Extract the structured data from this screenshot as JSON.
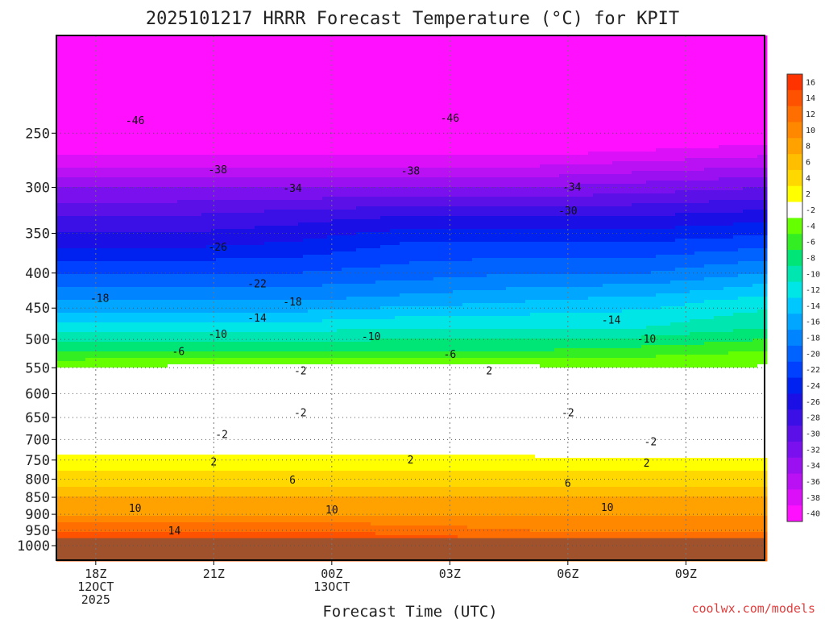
{
  "chart_data": {
    "type": "heatmap",
    "title": "2025101217 HRRR Forecast Temperature (°C) for KPIT",
    "xlabel": "Forecast Time (UTC)",
    "ylabel": "",
    "credit": "coolwx.com/models",
    "x_ticks": [
      {
        "hour": 0,
        "lines": [
          "18Z",
          "12OCT",
          "2025"
        ]
      },
      {
        "hour": 3,
        "lines": [
          "21Z"
        ]
      },
      {
        "hour": 6,
        "lines": [
          "00Z",
          "13OCT"
        ]
      },
      {
        "hour": 9,
        "lines": [
          "03Z"
        ]
      },
      {
        "hour": 12,
        "lines": [
          "06Z"
        ]
      },
      {
        "hour": 15,
        "lines": [
          "09Z"
        ]
      }
    ],
    "xlim": [
      -1,
      17
    ],
    "y_ticks": [
      250,
      300,
      350,
      400,
      450,
      500,
      550,
      600,
      650,
      700,
      750,
      800,
      850,
      900,
      950,
      1000
    ],
    "ylim_hPa": [
      1050,
      180
    ],
    "y_scale": "log",
    "ground_fill": "#a0522d",
    "colorbar": {
      "labels": [
        "16",
        "14",
        "12",
        "10",
        "8",
        "6",
        "4",
        "2",
        "-2",
        "-4",
        "-6",
        "-8",
        "-10",
        "-12",
        "-14",
        "-16",
        "-18",
        "-20",
        "-22",
        "-24",
        "-26",
        "-28",
        "-30",
        "-32",
        "-34",
        "-36",
        "-38",
        "-40"
      ],
      "colors": [
        "#ff3300",
        "#ff5200",
        "#ff6e00",
        "#ff8800",
        "#ffa200",
        "#ffbe00",
        "#ffd800",
        "#ffff00",
        "#ffffff",
        "#66ff00",
        "#33ee22",
        "#00e676",
        "#00e6b0",
        "#00e6e6",
        "#00c8ff",
        "#00a6ff",
        "#0084ff",
        "#0062ff",
        "#0040ff",
        "#0022f0",
        "#1a10e6",
        "#3a10e6",
        "#5a10e6",
        "#7a10ee",
        "#9a10f0",
        "#ba10f4",
        "#dc10f8",
        "#ff10ff"
      ]
    },
    "temperature_levels_C": [
      {
        "hPa": 200,
        "temps": [
          -50,
          -50,
          -50,
          -50,
          -50,
          -50,
          -50
        ]
      },
      {
        "hPa": 240,
        "temps": [
          -46,
          -46,
          -46,
          -46,
          -46,
          -45,
          -44
        ]
      },
      {
        "hPa": 270,
        "temps": [
          -40,
          -40,
          -40,
          -40,
          -40,
          -39,
          -38
        ]
      },
      {
        "hPa": 300,
        "temps": [
          -34,
          -34,
          -34,
          -34,
          -34,
          -33,
          -32
        ]
      },
      {
        "hPa": 330,
        "temps": [
          -30,
          -30,
          -29,
          -28,
          -28,
          -28,
          -27
        ]
      },
      {
        "hPa": 360,
        "temps": [
          -27,
          -27,
          -26,
          -24,
          -24,
          -24,
          -23
        ]
      },
      {
        "hPa": 400,
        "temps": [
          -22,
          -22,
          -22,
          -21,
          -20,
          -20,
          -18
        ]
      },
      {
        "hPa": 440,
        "temps": [
          -18,
          -18,
          -18,
          -17,
          -16,
          -15,
          -13
        ]
      },
      {
        "hPa": 480,
        "temps": [
          -13,
          -13,
          -13,
          -12,
          -12,
          -12,
          -10
        ]
      },
      {
        "hPa": 520,
        "temps": [
          -8,
          -8,
          -8,
          -8,
          -8,
          -7,
          -6
        ]
      },
      {
        "hPa": 560,
        "temps": [
          -3,
          -2,
          -2,
          -2,
          -2,
          -3,
          -3
        ]
      },
      {
        "hPa": 600,
        "temps": [
          1,
          0,
          -1,
          -1,
          -1,
          -2,
          -3
        ]
      },
      {
        "hPa": 640,
        "temps": [
          -2,
          -3,
          -3,
          -1,
          -1,
          -3,
          -3
        ]
      },
      {
        "hPa": 680,
        "temps": [
          -1,
          -2,
          -2,
          0,
          0,
          -2,
          -2
        ]
      },
      {
        "hPa": 720,
        "temps": [
          1,
          1,
          1,
          1,
          1,
          0,
          0
        ]
      },
      {
        "hPa": 760,
        "temps": [
          3,
          3,
          3,
          3,
          3,
          3,
          3
        ]
      },
      {
        "hPa": 800,
        "temps": [
          5,
          5,
          5,
          5,
          5,
          5,
          5
        ]
      },
      {
        "hPa": 850,
        "temps": [
          8,
          8,
          8,
          8,
          8,
          8,
          8
        ]
      },
      {
        "hPa": 900,
        "temps": [
          10,
          10,
          10,
          10,
          10,
          10,
          10
        ]
      },
      {
        "hPa": 950,
        "temps": [
          14,
          14,
          14,
          13,
          12,
          12,
          12
        ]
      },
      {
        "hPa": 980,
        "temps": [
          16,
          16,
          16,
          15,
          14,
          14,
          14
        ]
      }
    ],
    "contour_labels": [
      {
        "text": "-46",
        "hour": 1.0,
        "hPa": 240
      },
      {
        "text": "-46",
        "hour": 9.0,
        "hPa": 238
      },
      {
        "text": "-38",
        "hour": 3.1,
        "hPa": 283
      },
      {
        "text": "-38",
        "hour": 8.0,
        "hPa": 284
      },
      {
        "text": "-34",
        "hour": 5.0,
        "hPa": 301
      },
      {
        "text": "-34",
        "hour": 12.1,
        "hPa": 300
      },
      {
        "text": "-30",
        "hour": 12.0,
        "hPa": 325
      },
      {
        "text": "-26",
        "hour": 3.1,
        "hPa": 367
      },
      {
        "text": "-22",
        "hour": 4.1,
        "hPa": 415
      },
      {
        "text": "-18",
        "hour": 0.1,
        "hPa": 436
      },
      {
        "text": "-18",
        "hour": 5.0,
        "hPa": 441
      },
      {
        "text": "-14",
        "hour": 4.1,
        "hPa": 466
      },
      {
        "text": "-14",
        "hour": 13.1,
        "hPa": 469
      },
      {
        "text": "-10",
        "hour": 3.1,
        "hPa": 492
      },
      {
        "text": "-10",
        "hour": 7.0,
        "hPa": 496
      },
      {
        "text": "-10",
        "hour": 14.0,
        "hPa": 500
      },
      {
        "text": "-6",
        "hour": 2.1,
        "hPa": 521
      },
      {
        "text": "-6",
        "hour": 9.0,
        "hPa": 526
      },
      {
        "text": "-2",
        "hour": 5.2,
        "hPa": 556
      },
      {
        "text": "2",
        "hour": 10.0,
        "hPa": 556
      },
      {
        "text": "-2",
        "hour": 5.2,
        "hPa": 640
      },
      {
        "text": "-2",
        "hour": 3.2,
        "hPa": 689
      },
      {
        "text": "-2",
        "hour": 12.0,
        "hPa": 640
      },
      {
        "text": "-2",
        "hour": 14.1,
        "hPa": 706
      },
      {
        "text": "2",
        "hour": 3.0,
        "hPa": 756
      },
      {
        "text": "2",
        "hour": 8.0,
        "hPa": 750
      },
      {
        "text": "2",
        "hour": 14.0,
        "hPa": 759
      },
      {
        "text": "6",
        "hour": 5.0,
        "hPa": 803
      },
      {
        "text": "6",
        "hour": 12.0,
        "hPa": 812
      },
      {
        "text": "10",
        "hour": 1.0,
        "hPa": 883
      },
      {
        "text": "10",
        "hour": 6.0,
        "hPa": 888
      },
      {
        "text": "10",
        "hour": 13.0,
        "hPa": 881
      },
      {
        "text": "14",
        "hour": 2.0,
        "hPa": 952
      }
    ],
    "grid": true,
    "legend": "colorbar right"
  }
}
